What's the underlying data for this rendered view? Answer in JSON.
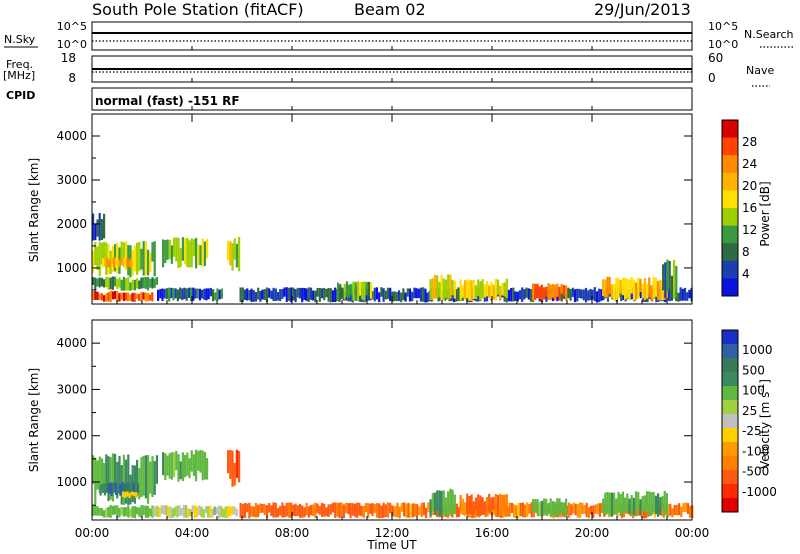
{
  "header": {
    "title": "South Pole Station (fitACF)",
    "beam": "Beam 02",
    "date": "29/Jun/2013"
  },
  "panels": {
    "nsky_label": "N.Sky",
    "nsky_ticks": [
      "10^5",
      "10^0"
    ],
    "nsearch_label": "N.Search",
    "nsearch_ticks": [
      "10^5",
      "10^0"
    ],
    "freq_label_1": "Freq.",
    "freq_label_2": "[MHz]",
    "freq_ticks": [
      "18",
      "8"
    ],
    "nave_label": "Nave",
    "nave_ticks": [
      "60",
      "0"
    ],
    "cpid_label": "CPID",
    "cpid_value": "normal (fast) -151 RF"
  },
  "colorbars": {
    "power": {
      "title": "Power [dB]",
      "labels": [
        "28",
        "24",
        "20",
        "16",
        "12",
        "8",
        "4"
      ],
      "colors": [
        "#d90000",
        "#ff4400",
        "#ff8a00",
        "#ffb300",
        "#ffe000",
        "#9ed000",
        "#3a9a40",
        "#2f6a40",
        "#1a3fb0",
        "#0a12e0"
      ]
    },
    "velocity": {
      "title": "Velocity [m s",
      "title_sup": "-1",
      "title_end": "]",
      "labels": [
        "1000",
        "500",
        "100",
        "25",
        "-25",
        "-100",
        "-500",
        "-1000"
      ],
      "colors": [
        "#1a2fc8",
        "#2f5fa8",
        "#3a7a5a",
        "#3a8a60",
        "#60b840",
        "#9ed040",
        "#c0c0c0",
        "#ffd000",
        "#ff9a00",
        "#ff8000",
        "#ff5a10",
        "#ff2a00",
        "#e00000"
      ]
    },
    "ground_scatter_color": "#a8a8a8"
  },
  "chart_data": {
    "type": "heatmap",
    "xlabel": "Time UT",
    "ylabel": "Slant Range [km]",
    "x_ticks": [
      "00:00",
      "04:00",
      "08:00",
      "12:00",
      "16:00",
      "20:00",
      "00:00"
    ],
    "x_range_hours": [
      0,
      24
    ],
    "y_ticks": [
      1000,
      2000,
      3000,
      4000
    ],
    "y_range_km": [
      180,
      4500
    ],
    "power_patches": [
      {
        "t0": 0.0,
        "t1": 1.4,
        "r0": 220,
        "r1": 480,
        "power": 26
      },
      {
        "t0": 1.4,
        "t1": 2.4,
        "r0": 230,
        "r1": 450,
        "power": 24
      },
      {
        "t0": 0.0,
        "t1": 2.6,
        "r0": 480,
        "r1": 800,
        "power": 10
      },
      {
        "t0": 2.6,
        "t1": 5.2,
        "r0": 240,
        "r1": 560,
        "power": 6
      },
      {
        "t0": 0.0,
        "t1": 2.5,
        "r0": 800,
        "r1": 1600,
        "power": 14
      },
      {
        "t0": 0.4,
        "t1": 1.6,
        "r0": 1000,
        "r1": 1250,
        "power": 20
      },
      {
        "t0": 2.8,
        "t1": 4.6,
        "r0": 1000,
        "r1": 1700,
        "power": 13
      },
      {
        "t0": 5.4,
        "t1": 5.9,
        "r0": 900,
        "r1": 1700,
        "power": 15
      },
      {
        "t0": 0.0,
        "t1": 0.5,
        "r0": 1600,
        "r1": 2250,
        "power": 6
      },
      {
        "t0": 5.9,
        "t1": 24.0,
        "r0": 220,
        "r1": 560,
        "power": 5
      },
      {
        "t0": 9.8,
        "t1": 11.2,
        "r0": 250,
        "r1": 700,
        "power": 12
      },
      {
        "t0": 13.5,
        "t1": 14.5,
        "r0": 250,
        "r1": 850,
        "power": 16
      },
      {
        "t0": 14.7,
        "t1": 16.6,
        "r0": 250,
        "r1": 750,
        "power": 17
      },
      {
        "t0": 17.6,
        "t1": 19.0,
        "r0": 250,
        "r1": 650,
        "power": 24
      },
      {
        "t0": 20.4,
        "t1": 23.0,
        "r0": 250,
        "r1": 800,
        "power": 19
      },
      {
        "t0": 22.8,
        "t1": 23.4,
        "r0": 300,
        "r1": 1200,
        "power": 9
      }
    ],
    "velocity_patches": [
      {
        "t0": 0.0,
        "t1": 2.4,
        "r0": 220,
        "r1": 500,
        "velocity": 150
      },
      {
        "t0": 0.0,
        "t1": 2.6,
        "r0": 500,
        "r1": 1600,
        "velocity": 300
      },
      {
        "t0": 0.3,
        "t1": 1.8,
        "r0": 700,
        "r1": 1000,
        "velocity": 700
      },
      {
        "t0": 2.8,
        "t1": 4.6,
        "r0": 1000,
        "r1": 1700,
        "velocity": 200
      },
      {
        "t0": 2.4,
        "t1": 5.8,
        "r0": 220,
        "r1": 500,
        "velocity": 60
      },
      {
        "t0": 5.4,
        "t1": 5.9,
        "r0": 900,
        "r1": 1700,
        "velocity": -300
      },
      {
        "t0": 5.9,
        "t1": 12.0,
        "r0": 220,
        "r1": 560,
        "velocity": -150
      },
      {
        "t0": 12.0,
        "t1": 24.0,
        "r0": 220,
        "r1": 560,
        "velocity": -80
      },
      {
        "t0": 13.5,
        "t1": 14.5,
        "r0": 250,
        "r1": 850,
        "velocity": 300
      },
      {
        "t0": 14.7,
        "t1": 16.6,
        "r0": 250,
        "r1": 750,
        "velocity": -120
      },
      {
        "t0": 17.6,
        "t1": 19.0,
        "r0": 250,
        "r1": 650,
        "velocity": 200
      },
      {
        "t0": 20.4,
        "t1": 23.0,
        "r0": 250,
        "r1": 800,
        "velocity": 250
      },
      {
        "t0": 1.2,
        "t1": 1.8,
        "r0": 650,
        "r1": 800,
        "velocity": 0
      }
    ]
  }
}
